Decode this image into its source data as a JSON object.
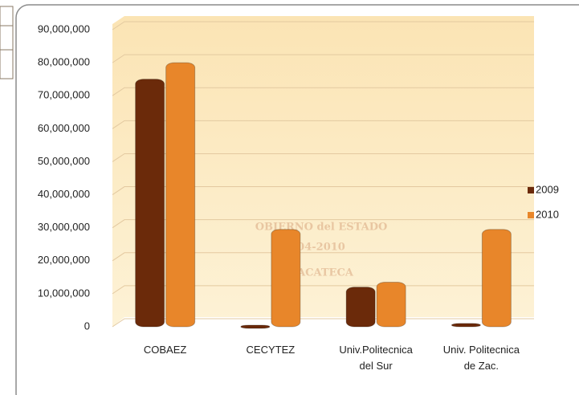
{
  "watermark": [
    "OBIERNO del ESTADO",
    "04-2010",
    "ACATECA"
  ],
  "chart_data": {
    "type": "bar",
    "categories": [
      "COBAEZ",
      "CECYTEZ",
      "Univ.Politecnica\ndel Sur",
      "Univ. Politecnica\nde Zac."
    ],
    "series": [
      {
        "name": "2009",
        "color": "#6b2a0a",
        "values": [
          75000000,
          500000,
          12000000,
          1000000
        ]
      },
      {
        "name": "2010",
        "color": "#e8862a",
        "values": [
          80000000,
          29500000,
          13500000,
          29500000
        ]
      }
    ],
    "ylim": [
      0,
      90000000
    ],
    "yticks": [
      0,
      {
        "value": 10000000,
        "label": "10,000,000"
      },
      {
        "value": 20000000,
        "label": "20,000,000"
      },
      {
        "value": 30000000,
        "label": "30,000,000"
      },
      {
        "value": 40000000,
        "label": "40,000,000"
      },
      {
        "value": 50000000,
        "label": "50,000,000"
      },
      {
        "value": 60000000,
        "label": "60,000,000"
      },
      {
        "value": 70000000,
        "label": "70,000,000"
      },
      {
        "value": 80000000,
        "label": "80,000,000"
      },
      {
        "value": 90000000,
        "label": "90,000,000"
      }
    ],
    "grid": true,
    "legend": "right"
  }
}
